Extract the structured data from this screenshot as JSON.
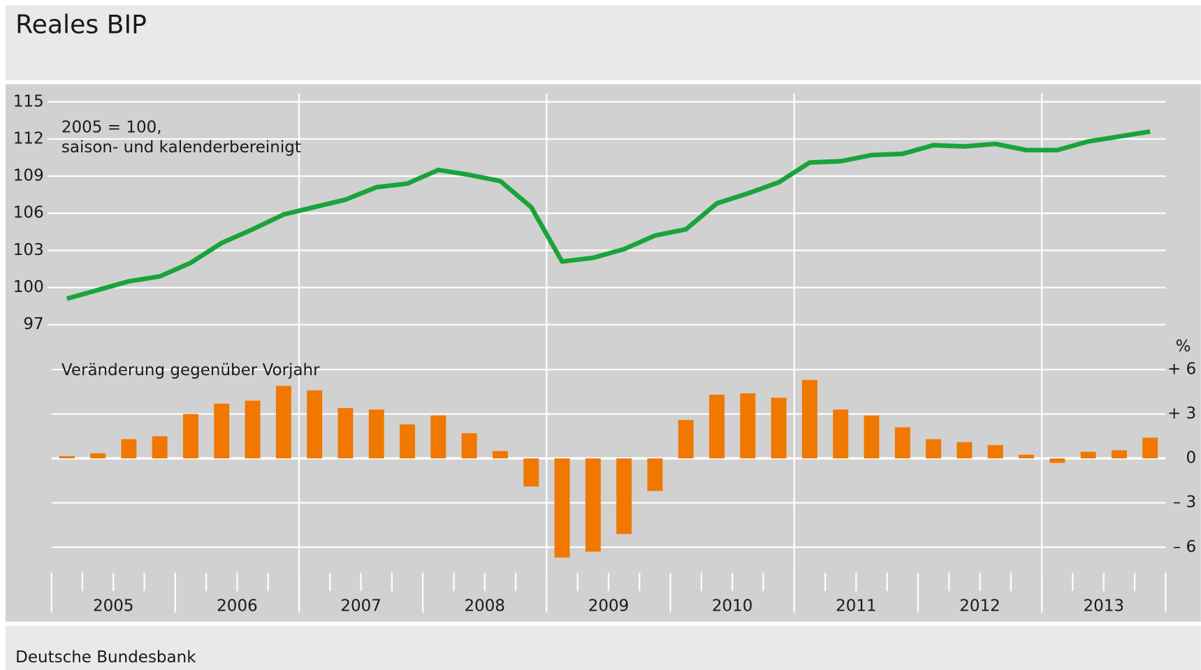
{
  "title": "Reales BIP",
  "source": "Deutsche Bundesbank",
  "years": [
    2005,
    2006,
    2007,
    2008,
    2009,
    2010,
    2011,
    2012,
    2013
  ],
  "chart_data": [
    {
      "type": "line",
      "annotation": [
        "2005 = 100,",
        "saison- und kalenderbereinigt"
      ],
      "color": "#1aa33a",
      "values": [
        99.1,
        99.8,
        100.5,
        100.9,
        102.0,
        103.6,
        104.7,
        105.9,
        106.5,
        107.1,
        108.1,
        108.4,
        109.5,
        109.1,
        108.6,
        106.5,
        102.1,
        102.4,
        103.1,
        104.2,
        104.7,
        106.8,
        107.6,
        108.5,
        110.1,
        110.2,
        110.7,
        110.8,
        111.5,
        111.4,
        111.6,
        111.1,
        111.1,
        111.8,
        112.2,
        112.6
      ],
      "ylim": [
        97,
        115
      ],
      "yticks": [
        97,
        100,
        103,
        106,
        109,
        112,
        115
      ],
      "grid": true
    },
    {
      "type": "bar",
      "annotation": "Veränderung gegenüber Vorjahr",
      "unit": "%",
      "color": "#f07800",
      "values": [
        0.15,
        0.35,
        1.3,
        1.5,
        3.0,
        3.7,
        3.9,
        4.9,
        4.6,
        3.4,
        3.3,
        2.3,
        2.9,
        1.7,
        0.5,
        -1.9,
        -6.7,
        -6.3,
        -5.1,
        -2.2,
        2.6,
        4.3,
        4.4,
        4.1,
        5.3,
        3.3,
        2.9,
        2.1,
        1.3,
        1.1,
        0.9,
        0.25,
        -0.3,
        0.45,
        0.55,
        1.4
      ],
      "ylim": [
        -7,
        8
      ],
      "yticks": [
        {
          "value": -6,
          "label": "– 6"
        },
        {
          "value": -3,
          "label": "– 3"
        },
        0,
        {
          "value": 3,
          "label": "+ 3"
        },
        {
          "value": 6,
          "label": "+ 6"
        }
      ],
      "grid": true
    }
  ]
}
